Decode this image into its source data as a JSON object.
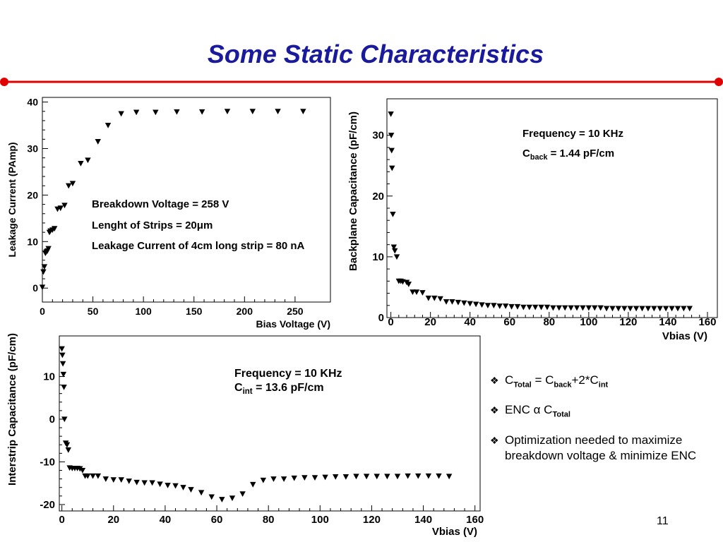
{
  "slide": {
    "title": "Some Static Characteristics",
    "page_number": "11",
    "accent_color": "#1a1a9c",
    "rule_color": "#e00000"
  },
  "bullets": [
    {
      "parts": [
        [
          "C",
          ""
        ],
        [
          "Total",
          "sub"
        ],
        [
          " = C",
          ""
        ],
        [
          "back",
          "sub"
        ],
        [
          "+2*C",
          ""
        ],
        [
          "int",
          "sub"
        ]
      ]
    },
    {
      "parts": [
        [
          "ENC α C",
          ""
        ],
        [
          "Total",
          "sub"
        ]
      ]
    },
    {
      "parts": [
        [
          "Optimization needed to maximize breakdown voltage & minimize ENC",
          ""
        ]
      ]
    }
  ],
  "chart_data": [
    {
      "type": "scatter",
      "marker": "triangle-down",
      "xlabel": "Bias Voltage (V)",
      "ylabel": "Leakage Current (PAmp)",
      "xlim": [
        0,
        285
      ],
      "ylim": [
        -3,
        41
      ],
      "xticks": [
        0,
        50,
        100,
        150,
        200,
        250
      ],
      "yticks": [
        0,
        10,
        20,
        30,
        40
      ],
      "annotations": [
        "Breakdown Voltage = 258 V",
        "Lenght of Strips = 20μm",
        "Leakage Current of 4cm long strip = 80 nA"
      ],
      "x": [
        0,
        1,
        2,
        3,
        4,
        5,
        6,
        7,
        8,
        10,
        12,
        15,
        18,
        22,
        26,
        30,
        38,
        45,
        55,
        65,
        78,
        93,
        112,
        133,
        158,
        183,
        208,
        233,
        258
      ],
      "y": [
        0.2,
        3.5,
        4.6,
        7.5,
        7.8,
        8,
        8.5,
        12,
        12.3,
        12.5,
        12.8,
        17,
        17.2,
        17.8,
        22,
        22.5,
        26.8,
        27.5,
        31.5,
        35,
        37.5,
        37.8,
        37.8,
        37.9,
        37.9,
        38,
        38,
        38,
        38
      ]
    },
    {
      "type": "scatter",
      "marker": "triangle-down",
      "xlabel": "Vbias (V)",
      "ylabel": "Backplane Capacitance (pF/cm)",
      "xlim": [
        -2,
        165
      ],
      "ylim": [
        0,
        36
      ],
      "xticks": [
        0,
        20,
        40,
        60,
        80,
        100,
        120,
        140,
        160
      ],
      "yticks": [
        0,
        10,
        20,
        30
      ],
      "annotations": [
        "Frequency = 10 KHz",
        "C",
        "back",
        " = 1.44 pF/cm"
      ],
      "x": [
        0,
        0.2,
        0.4,
        0.6,
        1,
        1.5,
        2,
        3,
        4,
        5,
        6,
        8,
        9,
        11,
        13,
        16,
        19,
        22,
        25,
        28,
        31,
        34,
        37,
        40,
        43,
        46,
        49,
        52,
        55,
        58,
        61,
        64,
        67,
        70,
        73,
        76,
        79,
        82,
        85,
        88,
        91,
        94,
        97,
        100,
        103,
        106,
        109,
        112,
        115,
        118,
        121,
        124,
        127,
        130,
        133,
        136,
        139,
        142,
        145,
        148,
        151
      ],
      "y": [
        33.5,
        30,
        27.5,
        24.6,
        17,
        11.6,
        11,
        10,
        6,
        6,
        5.9,
        5.8,
        5.5,
        4.2,
        4.2,
        4.1,
        3.2,
        3.2,
        3.1,
        2.6,
        2.6,
        2.5,
        2.4,
        2.3,
        2.2,
        2.1,
        2,
        2,
        1.9,
        1.9,
        1.8,
        1.8,
        1.7,
        1.7,
        1.7,
        1.7,
        1.7,
        1.6,
        1.6,
        1.6,
        1.6,
        1.6,
        1.6,
        1.6,
        1.6,
        1.6,
        1.5,
        1.5,
        1.5,
        1.5,
        1.5,
        1.5,
        1.5,
        1.5,
        1.5,
        1.5,
        1.5,
        1.5,
        1.5,
        1.5,
        1.5
      ]
    },
    {
      "type": "scatter",
      "marker": "triangle-down",
      "xlabel": "Vbias (V)",
      "ylabel": "Interstrip Capacitance (pF/cm)",
      "xlim": [
        -1,
        162
      ],
      "ylim": [
        -21.5,
        19.5
      ],
      "xticks": [
        0,
        20,
        40,
        60,
        80,
        100,
        120,
        140,
        160
      ],
      "yticks": [
        -20,
        -10,
        0,
        10
      ],
      "ytick_labels": [
        "-20",
        "-10",
        "0",
        "10"
      ],
      "annotations": [
        "Frequency = 10 KHz",
        "C",
        "int",
        " = 13.6 pF/cm"
      ],
      "x": [
        0,
        0.2,
        0.4,
        0.6,
        0.8,
        1,
        1.5,
        2,
        2.5,
        3,
        4,
        5,
        6,
        7,
        8,
        9,
        10,
        12,
        14,
        17,
        20,
        23,
        26,
        29,
        32,
        35,
        38,
        41,
        44,
        47,
        50,
        54,
        58,
        62,
        66,
        70,
        74,
        78,
        82,
        86,
        90,
        94,
        98,
        102,
        106,
        110,
        114,
        118,
        122,
        126,
        130,
        134,
        138,
        142,
        146,
        150
      ],
      "y": [
        16.5,
        15,
        13,
        10.5,
        7.5,
        0,
        -5.6,
        -6,
        -7.2,
        -11.4,
        -11.5,
        -11.5,
        -11.5,
        -11.6,
        -12,
        -13.3,
        -13.3,
        -13.3,
        -13.3,
        -14,
        -14.2,
        -14.2,
        -14.5,
        -14.8,
        -14.9,
        -14.9,
        -15.2,
        -15.5,
        -15.6,
        -16,
        -16.5,
        -17.2,
        -18.2,
        -18.8,
        -18.5,
        -17.5,
        -15.3,
        -14.3,
        -14,
        -14,
        -13.8,
        -13.7,
        -13.7,
        -13.6,
        -13.5,
        -13.5,
        -13.4,
        -13.4,
        -13.4,
        -13.4,
        -13.4,
        -13.3,
        -13.3,
        -13.3,
        -13.3,
        -13.4
      ]
    }
  ]
}
